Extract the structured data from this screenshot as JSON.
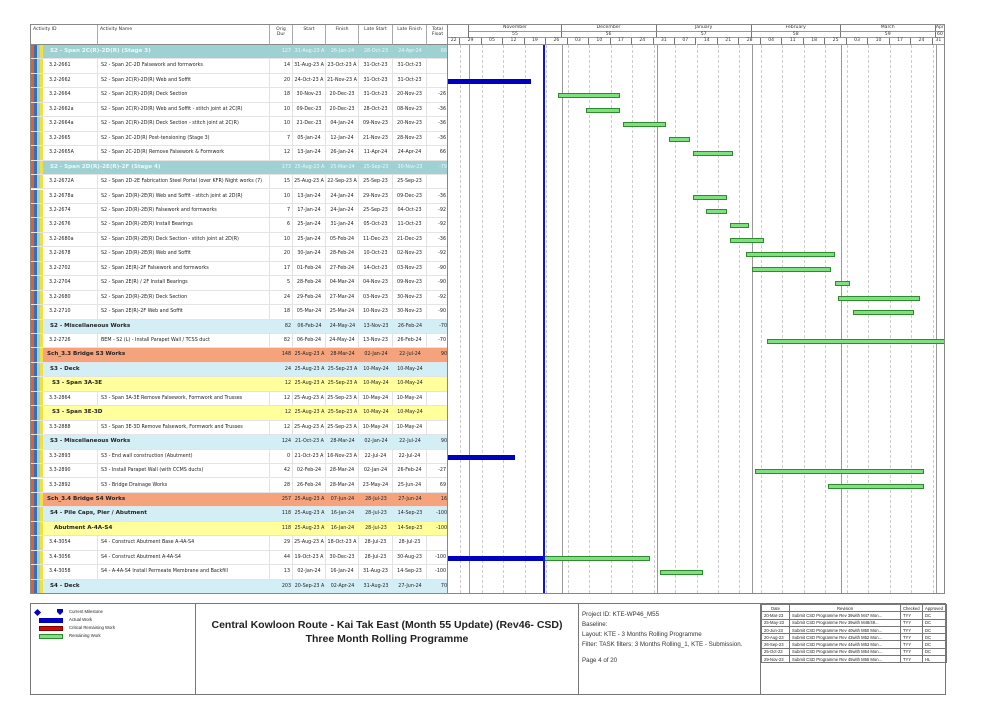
{
  "columns": {
    "id": "Activity ID",
    "name": "Activity Name",
    "dur": "Orig Dur",
    "start": "Start",
    "finish": "Finish",
    "late_start": "Late Start",
    "late_finish": "Late Finish",
    "float": "Total Float"
  },
  "timeline": {
    "chart_start": "25-Oct-23",
    "chart_end": "04-Apr-24",
    "data_date": "25-Nov-23",
    "months": [
      {
        "name": "November",
        "num": "55",
        "start": "01-Nov-23",
        "end": "01-Dec-23"
      },
      {
        "name": "December",
        "num": "56",
        "start": "01-Dec-23",
        "end": "01-Jan-24"
      },
      {
        "name": "January",
        "num": "57",
        "start": "01-Jan-24",
        "end": "01-Feb-24"
      },
      {
        "name": "February",
        "num": "58",
        "start": "01-Feb-24",
        "end": "01-Mar-24"
      },
      {
        "name": "March",
        "num": "59",
        "start": "01-Mar-24",
        "end": "01-Apr-24"
      },
      {
        "name": "Apr",
        "num": "60",
        "start": "01-Apr-24",
        "end": "04-Apr-24"
      }
    ],
    "weeks": [
      "22",
      "29",
      "05",
      "12",
      "19",
      "26",
      "03",
      "10",
      "17",
      "24",
      "31",
      "07",
      "14",
      "21",
      "28",
      "04",
      "11",
      "18",
      "25",
      "03",
      "10",
      "17",
      "24",
      "31"
    ]
  },
  "rows": [
    {
      "type": "teal",
      "indent": 15,
      "name": "S2 - Span 2C(R)-2D(R) (Stage 3)",
      "dur": "127",
      "start": "31-Aug-23 A",
      "finish": "26-Jan-24",
      "late_start": "28-Oct-23",
      "late_finish": "24-Apr-24",
      "float": "66"
    },
    {
      "type": "act",
      "id": "3.2-2661",
      "name": "S2 - Span 2C-2D Falsework and formworks",
      "dur": "14",
      "start": "31-Aug-23 A",
      "finish": "23-Oct-23 A",
      "late_start": "31-Oct-23",
      "late_finish": "31-Oct-23",
      "float": ""
    },
    {
      "type": "act",
      "id": "3.2-2662",
      "name": "S2 - Span 2C(R)-2D(R) Web and Soffit",
      "dur": "20",
      "start": "24-Oct-23 A",
      "finish": "21-Nov-23 A",
      "late_start": "31-Oct-23",
      "late_finish": "31-Oct-23",
      "float": ""
    },
    {
      "type": "act",
      "id": "3.2-2664",
      "name": "S2 - Span 2C(R)-2D(R) Deck Section",
      "dur": "18",
      "start": "30-Nov-23",
      "finish": "20-Dec-23",
      "late_start": "31-Oct-23",
      "late_finish": "20-Nov-23",
      "float": "-26"
    },
    {
      "type": "act",
      "id": "3.2-2662a",
      "name": "S2 - Span 2C(R)-2D(R) Web and Soffit - stitch joint at 2C(R)",
      "dur": "10",
      "start": "09-Dec-23",
      "finish": "20-Dec-23",
      "late_start": "28-Oct-23",
      "late_finish": "08-Nov-23",
      "float": "-36"
    },
    {
      "type": "act",
      "id": "3.2-2664a",
      "name": "S2 - Span 2C(R)-2D(R) Deck Section - stitch joint at 2C(R)",
      "dur": "10",
      "start": "21-Dec-23",
      "finish": "04-Jan-24",
      "late_start": "09-Nov-23",
      "late_finish": "20-Nov-23",
      "float": "-36"
    },
    {
      "type": "act",
      "id": "3.2-2665",
      "name": "S2 - Span 2C-2D(R) Post-tensioning (Stage 3)",
      "dur": "7",
      "start": "05-Jan-24",
      "finish": "12-Jan-24",
      "late_start": "21-Nov-23",
      "late_finish": "28-Nov-23",
      "float": "-36"
    },
    {
      "type": "act",
      "id": "3.2-2665A",
      "name": "S2 - Span 2C-2D(R) Remove Falsework & Formwork",
      "dur": "12",
      "start": "13-Jan-24",
      "finish": "26-Jan-24",
      "late_start": "11-Apr-24",
      "late_finish": "24-Apr-24",
      "float": "66"
    },
    {
      "type": "teal",
      "indent": 15,
      "name": "S2 - Span 2D(R)-2E(R)-2F (Stage 4)",
      "dur": "173",
      "start": "25-Aug-23 A",
      "finish": "25-Mar-24",
      "late_start": "25-Sep-23",
      "late_finish": "30-Nov-23",
      "float": "-79"
    },
    {
      "type": "act",
      "id": "3.2-2672A",
      "name": "S2 - Span 2D-2E Fabrication Steel Portal (over KFR) Night works (7)",
      "dur": "15",
      "start": "25-Aug-23 A",
      "finish": "22-Sep-23 A",
      "late_start": "25-Sep-23",
      "late_finish": "25-Sep-23",
      "float": ""
    },
    {
      "type": "act",
      "id": "3.2-2678a",
      "name": "S2 - Span 2D(R)-2E(R) Web and Soffit - stitch joint at 2D(R)",
      "dur": "10",
      "start": "13-Jan-24",
      "finish": "24-Jan-24",
      "late_start": "29-Nov-23",
      "late_finish": "09-Dec-23",
      "float": "-36"
    },
    {
      "type": "act",
      "id": "3.2-2674",
      "name": "S2 - Span 2D(R)-2E(R) Falsework and formworks",
      "dur": "7",
      "start": "17-Jan-24",
      "finish": "24-Jan-24",
      "late_start": "25-Sep-23",
      "late_finish": "04-Oct-23",
      "float": "-92"
    },
    {
      "type": "act",
      "id": "3.2-2676",
      "name": "S2 - Span 2D(R)-2E(R) Install Bearings",
      "dur": "6",
      "start": "25-Jan-24",
      "finish": "31-Jan-24",
      "late_start": "05-Oct-23",
      "late_finish": "11-Oct-23",
      "float": "-92"
    },
    {
      "type": "act",
      "id": "3.2-2680a",
      "name": "S2 - Span 2D(R)-2E(R) Deck Section - stitch joint at 2D(R)",
      "dur": "10",
      "start": "25-Jan-24",
      "finish": "05-Feb-24",
      "late_start": "11-Dec-23",
      "late_finish": "21-Dec-23",
      "float": "-36"
    },
    {
      "type": "act",
      "id": "3.2-2678",
      "name": "S2 - Span 2D(R)-2E(R) Web and Soffit",
      "dur": "20",
      "start": "30-Jan-24",
      "finish": "28-Feb-24",
      "late_start": "10-Oct-23",
      "late_finish": "02-Nov-23",
      "float": "-92"
    },
    {
      "type": "act",
      "id": "3.2-2702",
      "name": "S2 - Span 2E(R)-2F Falsework and formworks",
      "dur": "17",
      "start": "01-Feb-24",
      "finish": "27-Feb-24",
      "late_start": "14-Oct-23",
      "late_finish": "03-Nov-23",
      "float": "-90"
    },
    {
      "type": "act",
      "id": "3.2-2704",
      "name": "S2 - Span 2E(R) / 2F Install Bearings",
      "dur": "5",
      "start": "28-Feb-24",
      "finish": "04-Mar-24",
      "late_start": "04-Nov-23",
      "late_finish": "09-Nov-23",
      "float": "-90"
    },
    {
      "type": "act",
      "id": "3.2-2680",
      "name": "S2 - Span 2D(R)-2E(R) Deck Section",
      "dur": "24",
      "start": "29-Feb-24",
      "finish": "27-Mar-24",
      "late_start": "03-Nov-23",
      "late_finish": "30-Nov-23",
      "float": "-92"
    },
    {
      "type": "act",
      "id": "3.2-2710",
      "name": "S2 - Span 2E(R)-2F Web and Soffit",
      "dur": "18",
      "start": "05-Mar-24",
      "finish": "25-Mar-24",
      "late_start": "10-Nov-23",
      "late_finish": "30-Nov-23",
      "float": "-90"
    },
    {
      "type": "lblue",
      "indent": 15,
      "name": "S2 - Miscellaneous Works",
      "dur": "82",
      "start": "06-Feb-24",
      "finish": "24-May-24",
      "late_start": "13-Nov-23",
      "late_finish": "26-Feb-24",
      "float": "-70"
    },
    {
      "type": "act",
      "id": "3.2-2726",
      "name": "BEM - S2 (L) - Install Parapet Wall / TCSS duct",
      "dur": "82",
      "start": "06-Feb-24",
      "finish": "24-May-24",
      "late_start": "13-Nov-23",
      "late_finish": "26-Feb-24",
      "float": "-70"
    },
    {
      "type": "orange",
      "indent": 12,
      "name": "Sch_3.3 Bridge S3 Works",
      "dur": "148",
      "start": "25-Aug-23 A",
      "finish": "28-Mar-24",
      "late_start": "02-Jan-24",
      "late_finish": "22-Jul-24",
      "float": "90"
    },
    {
      "type": "lblue",
      "indent": 15,
      "name": "S3 - Deck",
      "dur": "24",
      "start": "25-Aug-23 A",
      "finish": "25-Sep-23 A",
      "late_start": "10-May-24",
      "late_finish": "10-May-24",
      "float": ""
    },
    {
      "type": "yellow",
      "indent": 17,
      "name": "S3 - Span 3A-3E",
      "dur": "12",
      "start": "25-Aug-23 A",
      "finish": "25-Sep-23 A",
      "late_start": "10-May-24",
      "late_finish": "10-May-24",
      "float": ""
    },
    {
      "type": "act",
      "id": "3.3-2864",
      "name": "S3 - Span 3A-3E Remove Falsework, Formwork and Trusses",
      "dur": "12",
      "start": "25-Aug-23 A",
      "finish": "25-Sep-23 A",
      "late_start": "10-May-24",
      "late_finish": "10-May-24",
      "float": ""
    },
    {
      "type": "yellow",
      "indent": 17,
      "name": "S3 - Span 3E-3D",
      "dur": "12",
      "start": "25-Aug-23 A",
      "finish": "25-Sep-23 A",
      "late_start": "10-May-24",
      "late_finish": "10-May-24",
      "float": ""
    },
    {
      "type": "act",
      "id": "3.3-2888",
      "name": "S3 - Span 3E-3D Remove Falsework, Formwork and Trusses",
      "dur": "12",
      "start": "25-Aug-23 A",
      "finish": "25-Sep-23 A",
      "late_start": "10-May-24",
      "late_finish": "10-May-24",
      "float": ""
    },
    {
      "type": "lblue",
      "indent": 15,
      "name": "S3 - Miscellaneous Works",
      "dur": "124",
      "start": "21-Oct-23 A",
      "finish": "28-Mar-24",
      "late_start": "02-Jan-24",
      "late_finish": "22-Jul-24",
      "float": "90"
    },
    {
      "type": "act",
      "id": "3.3-2893",
      "name": "S3 - End wall construction (Abutment)",
      "dur": "0",
      "start": "21-Oct-23 A",
      "finish": "16-Nov-23 A",
      "late_start": "22-Jul-24",
      "late_finish": "22-Jul-24",
      "float": ""
    },
    {
      "type": "act",
      "id": "3.3-2890",
      "name": "S3 - Install Parapet Wall (with CCMS ducts)",
      "dur": "42",
      "start": "02-Feb-24",
      "finish": "28-Mar-24",
      "late_start": "02-Jan-24",
      "late_finish": "26-Feb-24",
      "float": "-27"
    },
    {
      "type": "act",
      "id": "3.3-2892",
      "name": "S3 - Bridge Drainage Works",
      "dur": "28",
      "start": "26-Feb-24",
      "finish": "28-Mar-24",
      "late_start": "23-May-24",
      "late_finish": "25-Jun-24",
      "float": "69"
    },
    {
      "type": "orange",
      "indent": 12,
      "name": "Sch_3.4 Bridge S4 Works",
      "dur": "257",
      "start": "25-Aug-23 A",
      "finish": "07-Jun-24",
      "late_start": "28-Jul-23",
      "late_finish": "27-Jun-24",
      "float": "16"
    },
    {
      "type": "lblue",
      "indent": 15,
      "name": "S4 - Pile Caps, Pier / Abutment",
      "dur": "118",
      "start": "25-Aug-23 A",
      "finish": "16-Jan-24",
      "late_start": "28-Jul-23",
      "late_finish": "14-Sep-23",
      "float": "-100"
    },
    {
      "type": "yellow",
      "indent": 19,
      "name": "Abutment A-4A-S4",
      "dur": "118",
      "start": "25-Aug-23 A",
      "finish": "16-Jan-24",
      "late_start": "28-Jul-23",
      "late_finish": "14-Sep-23",
      "float": "-100"
    },
    {
      "type": "act",
      "id": "3.4-3054",
      "name": "S4 - Construct Abutment Base A-4A-S4",
      "dur": "29",
      "start": "25-Aug-23 A",
      "finish": "18-Oct-23 A",
      "late_start": "28-Jul-23",
      "late_finish": "28-Jul-23",
      "float": ""
    },
    {
      "type": "act",
      "id": "3.4-3056",
      "name": "S4 - Construct Abutment A-4A-S4",
      "dur": "44",
      "start": "19-Oct-23 A",
      "finish": "30-Dec-23",
      "late_start": "28-Jul-23",
      "late_finish": "30-Aug-23",
      "float": "-100"
    },
    {
      "type": "act",
      "id": "3.4-3058",
      "name": "S4 - A-4A-S4 Install Permeate Membrane and Backfill",
      "dur": "13",
      "start": "02-Jan-24",
      "finish": "16-Jan-24",
      "late_start": "31-Aug-23",
      "late_finish": "14-Sep-23",
      "float": "-100"
    },
    {
      "type": "lblue",
      "indent": 15,
      "name": "S4 - Deck",
      "dur": "203",
      "start": "20-Sep-23 A",
      "finish": "02-Apr-24",
      "late_start": "31-Aug-23",
      "late_finish": "27-Jun-24",
      "float": "70"
    }
  ],
  "legend": {
    "milestone": "Current Milestone",
    "actual": "Actual Work",
    "critical": "Critical Remaining Work",
    "remaining": "Remaining Work"
  },
  "colors": {
    "actual": "#0000c0",
    "remaining": "#7fe07f",
    "critical": "#e00000",
    "data_date": "#1010e0"
  },
  "title": {
    "line1": "Central Kowloon Route - Kai Tak East (Month 55 Update) (Rev46- CSD)",
    "line2": "Three Month Rolling Programme"
  },
  "project": {
    "id": "Project ID: KTE-WP46_M55",
    "baseline": "Baseline:",
    "layout": "Layout: KTE - 3 Months Rolling Programme",
    "filter": "Filter: TASK filters: 3 Months Rolling_1, KTE - Submission.",
    "page": "Page 4 of 20"
  },
  "revisions": {
    "headers": [
      "Date",
      "Revision",
      "Checked",
      "Approved"
    ],
    "rows": [
      [
        "20-Mar-23",
        "Submit CSD Programme Rev 39with M47 Mon...",
        "TYY",
        "DC"
      ],
      [
        "25-May-23",
        "Submit CSD Programme Rev 39with M48/49...",
        "TYY",
        "DC"
      ],
      [
        "20-Jun-23",
        "Submit CSD Programme Rev 40with M50 Mon...",
        "TYY",
        "DC"
      ],
      [
        "20-Aug-23",
        "Submit CSD Programme Rev 43with M52 Mon...",
        "TYY",
        "DC"
      ],
      [
        "26-Sep-23",
        "Submit CSD Programme Rev 44with M53 Mon...",
        "TYY",
        "DC"
      ],
      [
        "25-Oct-23",
        "Submit CSD Programme Rev 45with M54 Mon...",
        "TYY",
        "DC"
      ],
      [
        "29-Nov-23",
        "Submit CSD Programme Rev 45with M55 Mon...",
        "TYY",
        "HL"
      ]
    ]
  }
}
